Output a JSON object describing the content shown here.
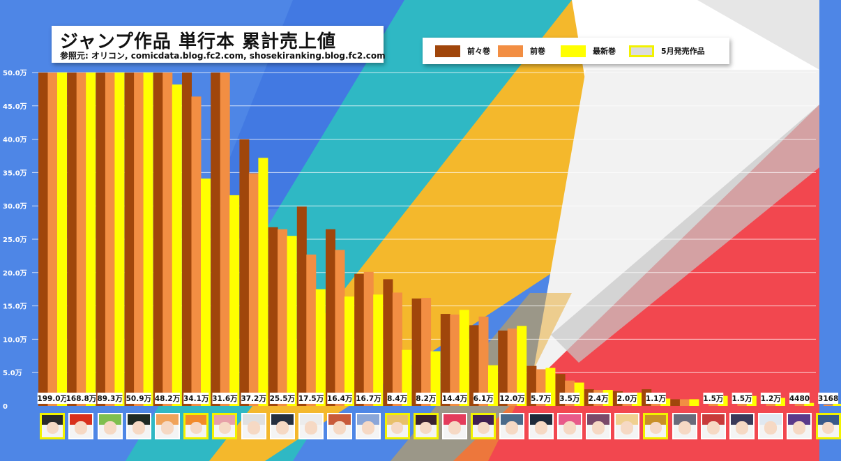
{
  "title": "ジャンプ作品 単行本 累計売上値",
  "subtitle": "参照元: オリコン, comicdata.blog.fc2.com, shosekiranking.blog.fc2.com",
  "legend": [
    {
      "label": "前々巻",
      "color": "#a0460b"
    },
    {
      "label": "前巻",
      "color": "#f28e43"
    },
    {
      "label": "最新巻",
      "color": "#ffff00"
    },
    {
      "label": "5月発売作品",
      "color": "#dcdcdc",
      "border": "#f2f200"
    }
  ],
  "chart_data": {
    "type": "bar",
    "title": "ジャンプ作品 単行本 累計売上値",
    "ylim": [
      0,
      50
    ],
    "yticks": [
      "0",
      "5.0万",
      "10.0万",
      "15.0万",
      "20.0万",
      "25.0万",
      "30.0万",
      "35.0万",
      "40.0万",
      "45.0万",
      "50.0万"
    ],
    "grid": true,
    "legend_position": "top-right",
    "unit": "万",
    "series": [
      {
        "name": "前々巻",
        "color": "#a0460b",
        "values": [
          50,
          50,
          50,
          50,
          50,
          50,
          50,
          40,
          26.8,
          29.9,
          26.5,
          19.8,
          19.0,
          16.1,
          13.8,
          12.1,
          11.3,
          6.0,
          4.8,
          2.5,
          2.2,
          2.5,
          1.0,
          0,
          0,
          0,
          0,
          0
        ]
      },
      {
        "name": "前巻",
        "color": "#f28e43",
        "values": [
          50,
          50,
          50,
          50,
          50,
          46.4,
          50,
          34.9,
          26.5,
          22.7,
          23.4,
          20.1,
          17.0,
          16.2,
          13.7,
          13.4,
          11.6,
          5.5,
          3.8,
          2.4,
          2.0,
          1.3,
          1.0,
          1.5,
          1.5,
          1.2,
          0.3,
          0.2
        ]
      },
      {
        "name": "最新巻",
        "color": "#ffff00",
        "values": [
          50,
          50,
          50,
          50,
          48.2,
          34.1,
          31.6,
          37.2,
          25.5,
          17.5,
          16.4,
          16.7,
          8.4,
          8.2,
          14.4,
          6.1,
          12.0,
          5.7,
          3.5,
          2.4,
          2.0,
          1.1,
          1.0,
          1.5,
          1.5,
          1.2,
          0.448,
          0.3168
        ]
      }
    ],
    "data_labels": [
      "199.0万",
      "168.8万",
      "89.3万",
      "50.9万",
      "48.2万",
      "34.1万",
      "31.6万",
      "37.2万",
      "25.5万",
      "17.5万",
      "16.4万",
      "16.7万",
      "8.4万",
      "8.2万",
      "14.4万",
      "6.1万",
      "12.0万",
      "5.7万",
      "3.5万",
      "2.4万",
      "2.0万",
      "1.1万",
      "",
      "1.5万",
      "1.5万",
      "1.2万",
      "4480",
      "3168"
    ],
    "may_release": [
      true,
      false,
      false,
      false,
      false,
      true,
      true,
      false,
      false,
      false,
      false,
      false,
      true,
      true,
      false,
      true,
      false,
      false,
      false,
      false,
      false,
      true,
      false,
      false,
      false,
      false,
      false,
      true
    ]
  },
  "thumbnail_colors": [
    "#2a2a2a",
    "#d8301c",
    "#7fbf4f",
    "#1f2a24",
    "#f0a35a",
    "#f28a2a",
    "#e7a0a8",
    "#e0e0e0",
    "#263040",
    "#ececec",
    "#c85a3a",
    "#8aa6d8",
    "#e8c06a",
    "#3a2230",
    "#e43c5c",
    "#402050",
    "#4a6a8a",
    "#1e2a3a",
    "#e85a8a",
    "#7a4a6a",
    "#f0d090",
    "#c89028",
    "#6a6a7a",
    "#c83a3a",
    "#3a3a5a",
    "#e0e8f0",
    "#5a3a8a",
    "#3a5a8a"
  ]
}
